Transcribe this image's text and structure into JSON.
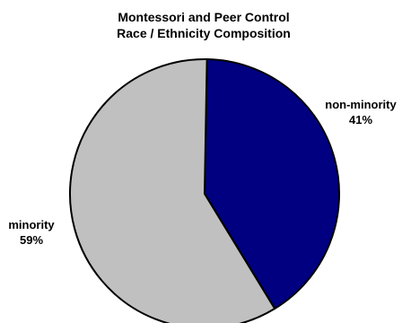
{
  "chart_data": {
    "type": "pie",
    "title": [
      "Montessori and Peer Control",
      "Race / Ethnicity Composition"
    ],
    "slices": [
      {
        "label": "non-minority",
        "value": 41,
        "value_label": "41%",
        "color": "#000080"
      },
      {
        "label": "minority",
        "value": 59,
        "value_label": "59%",
        "color": "#c0c0c0"
      }
    ],
    "start_angle_deg": 1,
    "direction": "clockwise",
    "outline_color": "#000000"
  }
}
